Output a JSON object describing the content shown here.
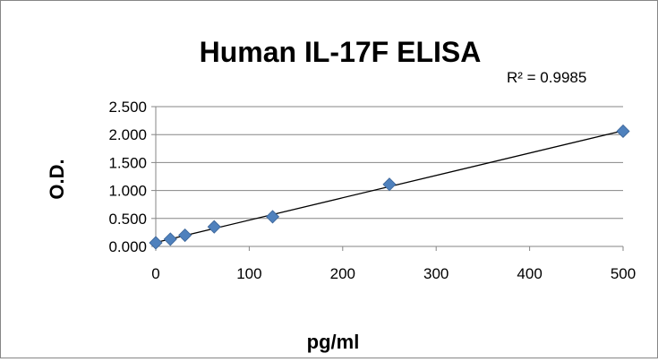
{
  "chart_data": {
    "type": "scatter",
    "title": "Human IL-17F ELISA",
    "xlabel": "pg/ml",
    "ylabel": "O.D.",
    "annotation": "R² = 0.9985",
    "x": [
      0,
      15.6,
      31.25,
      62.5,
      125,
      250,
      500
    ],
    "y": [
      0.065,
      0.13,
      0.2,
      0.35,
      0.53,
      1.11,
      2.06
    ],
    "xlim": [
      0,
      500
    ],
    "ylim": [
      0,
      2.5
    ],
    "xticks": [
      "0",
      "100",
      "200",
      "300",
      "400",
      "500"
    ],
    "yticks": [
      "0.000",
      "0.500",
      "1.000",
      "1.500",
      "2.000",
      "2.500"
    ],
    "trendline": {
      "type": "linear",
      "x": [
        0,
        500
      ],
      "y": [
        0.07,
        2.07
      ]
    },
    "grid": true,
    "marker": "diamond",
    "color": "#4f81bd"
  }
}
